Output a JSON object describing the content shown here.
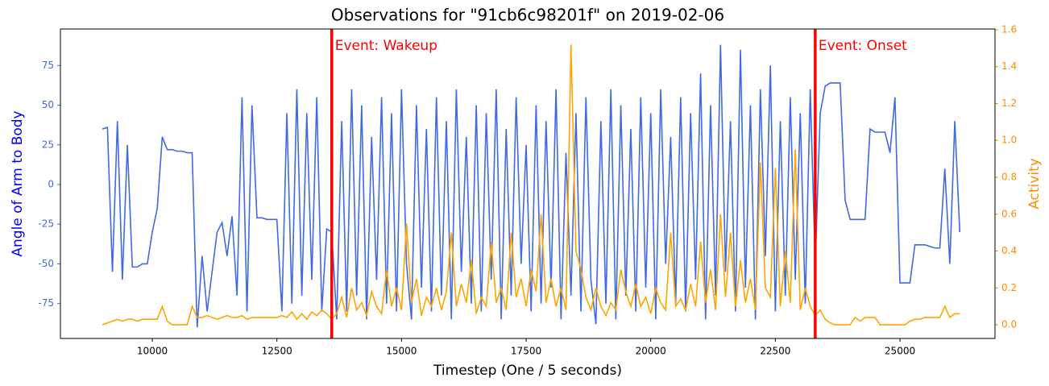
{
  "chart_data": {
    "type": "line",
    "title": "Observations for \"91cb6c98201f\" on 2019-02-06",
    "x_label": "Timestep (One / 5 seconds)",
    "y_label": "Angle of Arm to Body",
    "y2_label": "Activity",
    "xlim": [
      8157,
      26907
    ],
    "ylim": [
      -97,
      98
    ],
    "y2lim": [
      -0.074,
      1.604
    ],
    "xticks": [
      10000,
      12500,
      15000,
      17500,
      20000,
      22500,
      25000
    ],
    "yticks": [
      -75,
      -50,
      -25,
      0,
      25,
      50,
      75
    ],
    "y2ticks": [
      {
        "value": 0,
        "label": "0.0"
      },
      0.2,
      0.4,
      0.6,
      0.8,
      {
        "value": 1,
        "label": "1.0"
      },
      1.2,
      1.4,
      1.6
    ],
    "x": [
      9000,
      9100,
      9200,
      9300,
      9400,
      9500,
      9600,
      9700,
      9800,
      9900,
      10000,
      10100,
      10200,
      10300,
      10400,
      10500,
      10600,
      10700,
      10800,
      10900,
      11000,
      11100,
      11200,
      11300,
      11400,
      11500,
      11600,
      11700,
      11800,
      11900,
      12000,
      12100,
      12200,
      12300,
      12400,
      12500,
      12600,
      12700,
      12800,
      12900,
      13000,
      13100,
      13200,
      13300,
      13400,
      13500,
      13600,
      13700,
      13800,
      13900,
      14000,
      14100,
      14200,
      14300,
      14400,
      14500,
      14600,
      14700,
      14800,
      14900,
      15000,
      15100,
      15200,
      15300,
      15400,
      15500,
      15600,
      15700,
      15800,
      15900,
      16000,
      16100,
      16200,
      16300,
      16400,
      16500,
      16600,
      16700,
      16800,
      16900,
      17000,
      17100,
      17200,
      17300,
      17400,
      17500,
      17600,
      17700,
      17800,
      17900,
      18000,
      18100,
      18200,
      18300,
      18400,
      18500,
      18600,
      18700,
      18800,
      18900,
      19000,
      19100,
      19200,
      19300,
      19400,
      19500,
      19600,
      19700,
      19800,
      19900,
      20000,
      20100,
      20200,
      20300,
      20400,
      20500,
      20600,
      20700,
      20800,
      20900,
      21000,
      21100,
      21200,
      21300,
      21400,
      21500,
      21600,
      21700,
      21800,
      21900,
      22000,
      22100,
      22200,
      22300,
      22400,
      22500,
      22600,
      22700,
      22800,
      22900,
      23000,
      23100,
      23200,
      23300,
      23400,
      23500,
      23600,
      23700,
      23800,
      23900,
      24000,
      24100,
      24200,
      24300,
      24400,
      24500,
      24600,
      24700,
      24800,
      24900,
      25000,
      25100,
      25200,
      25300,
      25400,
      25500,
      25600,
      25700,
      25800,
      25900,
      26000,
      26100,
      26200
    ],
    "series": [
      {
        "name": "Angle of Arm to Body",
        "color": "#4169e1",
        "axis": "y",
        "values": [
          35,
          36,
          -55,
          40,
          -60,
          25,
          -52,
          -52,
          -50,
          -50,
          -30,
          -15,
          30,
          22,
          22,
          21,
          21,
          20,
          20,
          -90,
          -45,
          -80,
          -55,
          -30,
          -24,
          -45,
          -20,
          -70,
          55,
          -80,
          50,
          -21,
          -21,
          -22,
          -22,
          -22,
          -80,
          45,
          -75,
          60,
          -70,
          45,
          -60,
          55,
          -80,
          -28,
          -30,
          -85,
          40,
          -80,
          60,
          -70,
          50,
          -85,
          30,
          -60,
          55,
          -75,
          45,
          -80,
          60,
          -50,
          -85,
          50,
          -65,
          35,
          -80,
          55,
          -70,
          40,
          -85,
          60,
          -55,
          30,
          -75,
          50,
          -80,
          45,
          -60,
          60,
          -85,
          35,
          -70,
          55,
          -50,
          25,
          -80,
          50,
          -75,
          40,
          -65,
          60,
          -85,
          20,
          -70,
          45,
          -80,
          55,
          -60,
          -88,
          40,
          -75,
          60,
          -85,
          50,
          -70,
          35,
          -80,
          55,
          -65,
          45,
          -85,
          60,
          -50,
          30,
          -75,
          55,
          -80,
          45,
          -60,
          70,
          -85,
          50,
          -70,
          88,
          -55,
          40,
          -80,
          85,
          -65,
          50,
          -85,
          60,
          -45,
          75,
          -80,
          40,
          -70,
          55,
          -60,
          45,
          -75,
          60,
          -50,
          45,
          62,
          64,
          64,
          64,
          -10,
          -22,
          -22,
          -22,
          -22,
          35,
          33,
          33,
          33,
          20,
          55,
          -62,
          -62,
          -62,
          -38,
          -38,
          -38,
          -39,
          -40,
          -40,
          10,
          -50,
          40,
          -30
        ]
      },
      {
        "name": "Activity",
        "color": "#ffa500",
        "axis": "y2",
        "values": [
          0.0,
          0.01,
          0.02,
          0.03,
          0.02,
          0.03,
          0.03,
          0.02,
          0.03,
          0.03,
          0.03,
          0.03,
          0.1,
          0.02,
          0.0,
          0.0,
          0.0,
          0.0,
          0.1,
          0.04,
          0.04,
          0.05,
          0.04,
          0.03,
          0.04,
          0.05,
          0.04,
          0.04,
          0.05,
          0.03,
          0.04,
          0.04,
          0.04,
          0.04,
          0.04,
          0.04,
          0.05,
          0.04,
          0.07,
          0.03,
          0.06,
          0.03,
          0.07,
          0.05,
          0.08,
          0.06,
          0.03,
          0.06,
          0.15,
          0.04,
          0.2,
          0.08,
          0.12,
          0.05,
          0.18,
          0.1,
          0.06,
          0.3,
          0.1,
          0.2,
          0.08,
          0.55,
          0.12,
          0.25,
          0.05,
          0.15,
          0.1,
          0.2,
          0.08,
          0.18,
          0.5,
          0.1,
          0.22,
          0.12,
          0.35,
          0.06,
          0.15,
          0.1,
          0.45,
          0.12,
          0.2,
          0.08,
          0.5,
          0.15,
          0.25,
          0.1,
          0.3,
          0.18,
          0.6,
          0.12,
          0.25,
          0.1,
          0.2,
          0.08,
          1.52,
          0.4,
          0.3,
          0.15,
          0.08,
          0.2,
          0.1,
          0.05,
          0.12,
          0.08,
          0.3,
          0.18,
          0.1,
          0.22,
          0.1,
          0.15,
          0.06,
          0.2,
          0.12,
          0.08,
          0.5,
          0.1,
          0.14,
          0.08,
          0.22,
          0.1,
          0.45,
          0.12,
          0.3,
          0.08,
          0.6,
          0.15,
          0.5,
          0.1,
          0.35,
          0.12,
          0.25,
          0.08,
          0.88,
          0.2,
          0.15,
          0.85,
          0.1,
          0.4,
          0.12,
          0.95,
          0.08,
          0.2,
          0.1,
          0.05,
          0.08,
          0.03,
          0.01,
          0.0,
          0.0,
          0.0,
          0.0,
          0.04,
          0.02,
          0.04,
          0.04,
          0.04,
          0.0,
          0.0,
          0.0,
          0.0,
          0.0,
          0.0,
          0.02,
          0.03,
          0.03,
          0.04,
          0.04,
          0.04,
          0.04,
          0.1,
          0.04,
          0.06,
          0.06
        ]
      }
    ],
    "events": [
      {
        "label": "Event: Wakeup",
        "x": 13600,
        "color": "#ff0000"
      },
      {
        "label": "Event: Onset",
        "x": 23300,
        "color": "#ff0000"
      }
    ]
  }
}
